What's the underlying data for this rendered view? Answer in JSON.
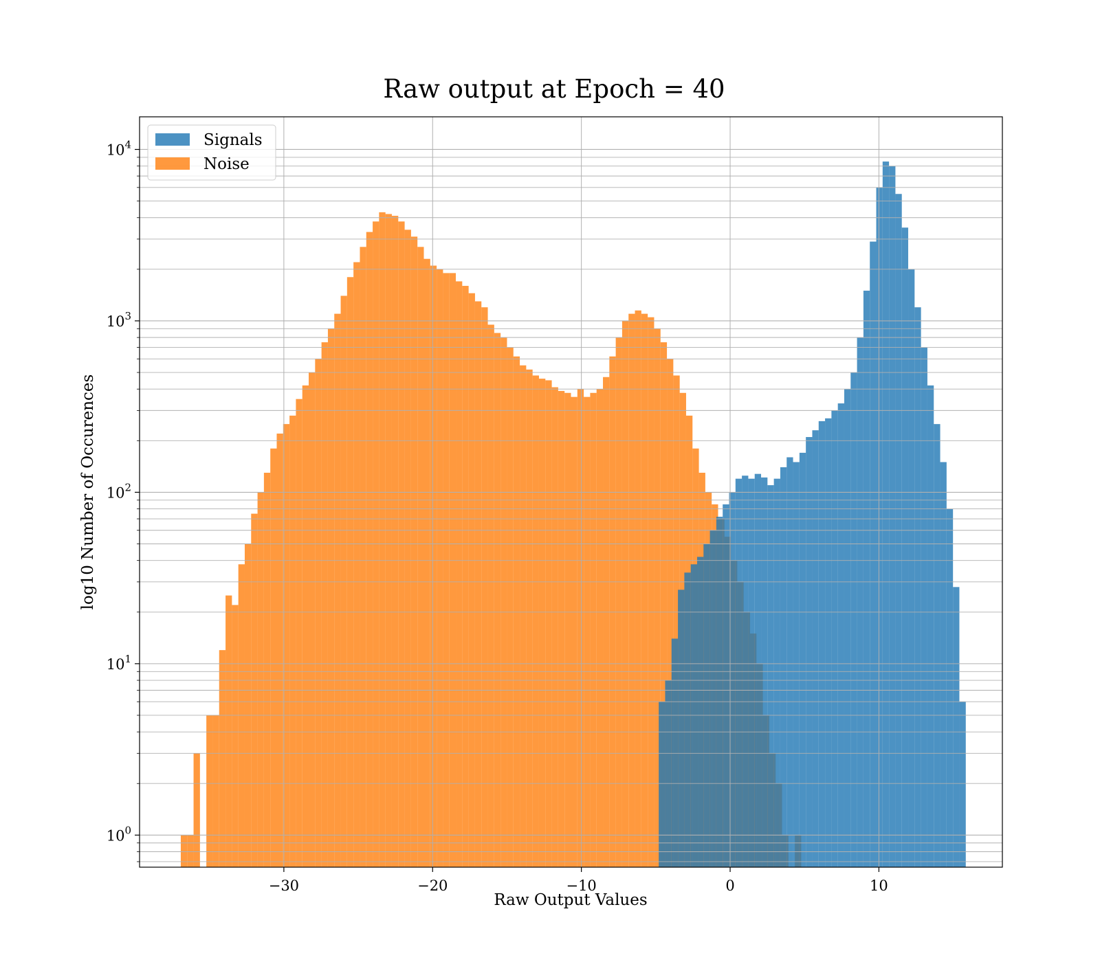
{
  "chart_data": {
    "type": "bar",
    "title": "Raw output at Epoch = 40",
    "xlabel": "Raw Output Values",
    "ylabel": "log10 Number of Occurences",
    "yscale": "log",
    "xlim": [
      -39.7,
      18.3
    ],
    "ylim": [
      0.65,
      15500
    ],
    "grid": true,
    "legend_position": "top-left",
    "x_ticks": [
      -30,
      -20,
      -10,
      0,
      10
    ],
    "x_tick_labels": [
      "−30",
      "−20",
      "−10",
      "0",
      "10"
    ],
    "y_ticks": [
      1,
      10,
      100,
      1000,
      10000
    ],
    "y_tick_base": "10",
    "y_tick_exponents": [
      "0",
      "1",
      "2",
      "3",
      "4"
    ],
    "colors": {
      "signals": "#1f77b4",
      "noise": "#ff7f0e"
    },
    "bar_alpha": 0.8,
    "bin_width": 0.43,
    "series": [
      {
        "name": "Signals",
        "x": [
          -4.8,
          -4.37,
          -3.94,
          -3.51,
          -3.08,
          -2.65,
          -2.22,
          -1.79,
          -1.36,
          -0.93,
          -0.5,
          -0.07,
          0.36,
          0.79,
          1.22,
          1.65,
          2.08,
          2.51,
          2.94,
          3.37,
          3.8,
          4.23,
          4.66,
          5.09,
          5.52,
          5.95,
          6.38,
          6.81,
          7.24,
          7.67,
          8.1,
          8.53,
          8.96,
          9.39,
          9.82,
          10.25,
          10.68,
          11.11,
          11.54,
          11.97,
          12.4,
          12.83,
          13.26,
          13.69,
          14.12,
          14.55,
          14.98,
          15.41
        ],
        "values": [
          6,
          8,
          14,
          27,
          34,
          38,
          42,
          50,
          60,
          72,
          85,
          100,
          120,
          125,
          120,
          128,
          122,
          110,
          120,
          140,
          160,
          150,
          170,
          210,
          230,
          260,
          270,
          300,
          330,
          400,
          500,
          800,
          1500,
          2900,
          6000,
          8500,
          8000,
          5500,
          3500,
          2000,
          1200,
          700,
          420,
          250,
          150,
          80,
          28,
          6
        ]
      },
      {
        "name": "Noise",
        "x": [
          -36.93,
          -36.5,
          -36.07,
          -35.64,
          -35.21,
          -34.78,
          -34.35,
          -33.92,
          -33.49,
          -33.06,
          -32.63,
          -32.2,
          -31.77,
          -31.34,
          -30.91,
          -30.48,
          -30.05,
          -29.62,
          -29.19,
          -28.76,
          -28.33,
          -27.9,
          -27.47,
          -27.04,
          -26.61,
          -26.18,
          -25.75,
          -25.32,
          -24.89,
          -24.46,
          -24.03,
          -23.6,
          -23.17,
          -22.74,
          -22.31,
          -21.88,
          -21.45,
          -21.02,
          -20.59,
          -20.16,
          -19.73,
          -19.3,
          -18.87,
          -18.44,
          -18.01,
          -17.58,
          -17.15,
          -16.72,
          -16.29,
          -15.86,
          -15.43,
          -15.0,
          -14.57,
          -14.14,
          -13.71,
          -13.28,
          -12.85,
          -12.42,
          -11.99,
          -11.56,
          -11.13,
          -10.7,
          -10.27,
          -9.84,
          -9.41,
          -8.98,
          -8.55,
          -8.12,
          -7.69,
          -7.26,
          -6.83,
          -6.4,
          -5.97,
          -5.54,
          -5.11,
          -4.68,
          -4.25,
          -3.82,
          -3.39,
          -2.96,
          -2.53,
          -2.1,
          -1.67,
          -1.24,
          -0.81,
          -0.38,
          0.05,
          0.48,
          0.91,
          1.34,
          1.77,
          2.2,
          2.63,
          3.06,
          3.49,
          3.92,
          4.35,
          4.78,
          5.21,
          5.64
        ],
        "values": [
          1,
          1,
          3,
          0,
          5,
          5,
          12,
          25,
          22,
          38,
          50,
          75,
          100,
          130,
          180,
          220,
          250,
          280,
          350,
          420,
          500,
          600,
          750,
          900,
          1100,
          1400,
          1800,
          2200,
          2700,
          3300,
          3800,
          4300,
          4200,
          4100,
          3800,
          3400,
          3100,
          2700,
          2300,
          2100,
          2000,
          1900,
          1900,
          1700,
          1600,
          1450,
          1300,
          1200,
          950,
          850,
          800,
          700,
          620,
          550,
          520,
          480,
          460,
          450,
          410,
          390,
          380,
          360,
          400,
          360,
          380,
          400,
          470,
          620,
          800,
          1000,
          1100,
          1150,
          1100,
          1050,
          900,
          750,
          600,
          480,
          380,
          280,
          180,
          130,
          100,
          85,
          70,
          55,
          40,
          30,
          20,
          15,
          10,
          5,
          3,
          2,
          1,
          0,
          1,
          0,
          0,
          0
        ]
      }
    ]
  }
}
